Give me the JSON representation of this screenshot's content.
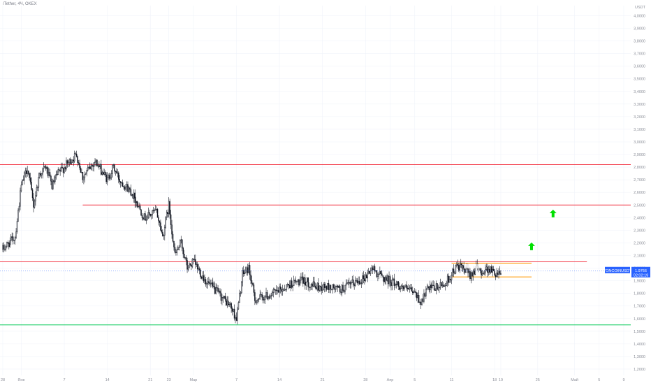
{
  "header": {
    "symbol_line": "/Tether, 4Ч, OKEX"
  },
  "currency": "USDT",
  "last_price": {
    "symbol": "TONCOINUSDT",
    "value": "1.9766",
    "countdown": "02:02:19",
    "color": "#2962ff"
  },
  "colors": {
    "up_candle": "#ffffff",
    "down_candle": "#131722",
    "wick": "#131722",
    "resistance": "#f23645",
    "support": "#00c853",
    "range": "#ff9800",
    "arrow": "#00e000",
    "grid": "#f0f3fa"
  },
  "chart_data": {
    "type": "candlestick",
    "timeframe": "4Ч",
    "y_ticks": [
      1.2,
      1.3,
      1.4,
      1.5,
      1.6,
      1.7,
      1.8,
      1.9,
      2.0,
      2.1,
      2.2,
      2.3,
      2.4,
      2.5,
      2.6,
      2.7,
      2.8,
      2.9,
      3.0,
      3.1,
      3.2,
      3.3,
      3.4,
      3.5,
      3.6,
      3.7,
      3.8,
      3.9,
      4.0
    ],
    "ylim": [
      1.15,
      4.08
    ],
    "x_ticks": [
      {
        "label": "28",
        "day": 0
      },
      {
        "label": "Янв",
        "day": 3
      },
      {
        "label": "7",
        "day": 10
      },
      {
        "label": "14",
        "day": 17
      },
      {
        "label": "21",
        "day": 24
      },
      {
        "label": "23",
        "day": 27
      },
      {
        "label": "Мар",
        "day": 31
      },
      {
        "label": "7",
        "day": 38
      },
      {
        "label": "14",
        "day": 45
      },
      {
        "label": "21",
        "day": 52
      },
      {
        "label": "28",
        "day": 59
      },
      {
        "label": "Апр",
        "day": 63
      },
      {
        "label": "5",
        "day": 67
      },
      {
        "label": "11",
        "day": 73
      },
      {
        "label": "18",
        "day": 80
      },
      {
        "label": "19",
        "day": 81
      },
      {
        "label": "25",
        "day": 87
      },
      {
        "label": "Май",
        "day": 93
      },
      {
        "label": "5",
        "day": 97
      },
      {
        "label": "9",
        "day": 101
      }
    ],
    "price_path": [
      {
        "day": 0,
        "price": 2.15
      },
      {
        "day": 2,
        "price": 2.25
      },
      {
        "day": 3,
        "price": 2.65
      },
      {
        "day": 4,
        "price": 2.8
      },
      {
        "day": 5,
        "price": 2.5
      },
      {
        "day": 6,
        "price": 2.75
      },
      {
        "day": 7,
        "price": 2.8
      },
      {
        "day": 8,
        "price": 2.65
      },
      {
        "day": 9,
        "price": 2.75
      },
      {
        "day": 11,
        "price": 2.85
      },
      {
        "day": 12,
        "price": 2.9
      },
      {
        "day": 13,
        "price": 2.72
      },
      {
        "day": 15,
        "price": 2.85
      },
      {
        "day": 17,
        "price": 2.7
      },
      {
        "day": 18,
        "price": 2.8
      },
      {
        "day": 19,
        "price": 2.7
      },
      {
        "day": 21,
        "price": 2.6
      },
      {
        "day": 23,
        "price": 2.4
      },
      {
        "day": 25,
        "price": 2.45
      },
      {
        "day": 26,
        "price": 2.25
      },
      {
        "day": 27,
        "price": 2.5
      },
      {
        "day": 28,
        "price": 2.1
      },
      {
        "day": 29,
        "price": 2.2
      },
      {
        "day": 30,
        "price": 2.0
      },
      {
        "day": 31,
        "price": 2.05
      },
      {
        "day": 33,
        "price": 1.9
      },
      {
        "day": 35,
        "price": 1.8
      },
      {
        "day": 37,
        "price": 1.7
      },
      {
        "day": 38,
        "price": 1.6
      },
      {
        "day": 39,
        "price": 1.95
      },
      {
        "day": 40,
        "price": 2.0
      },
      {
        "day": 41,
        "price": 1.75
      },
      {
        "day": 43,
        "price": 1.78
      },
      {
        "day": 45,
        "price": 1.82
      },
      {
        "day": 47,
        "price": 1.88
      },
      {
        "day": 49,
        "price": 1.9
      },
      {
        "day": 51,
        "price": 1.85
      },
      {
        "day": 53,
        "price": 1.85
      },
      {
        "day": 55,
        "price": 1.83
      },
      {
        "day": 57,
        "price": 1.88
      },
      {
        "day": 59,
        "price": 1.93
      },
      {
        "day": 60,
        "price": 2.0
      },
      {
        "day": 62,
        "price": 1.92
      },
      {
        "day": 63,
        "price": 1.9
      },
      {
        "day": 65,
        "price": 1.85
      },
      {
        "day": 67,
        "price": 1.8
      },
      {
        "day": 68,
        "price": 1.73
      },
      {
        "day": 69,
        "price": 1.83
      },
      {
        "day": 71,
        "price": 1.85
      },
      {
        "day": 72,
        "price": 1.88
      },
      {
        "day": 73,
        "price": 1.95
      },
      {
        "day": 74,
        "price": 2.02
      },
      {
        "day": 76,
        "price": 1.95
      },
      {
        "day": 77,
        "price": 2.0
      },
      {
        "day": 78,
        "price": 1.97
      },
      {
        "day": 79,
        "price": 2.0
      },
      {
        "day": 80,
        "price": 1.96
      },
      {
        "day": 81,
        "price": 1.9766
      }
    ],
    "horizontal_lines": [
      {
        "name": "resistance-3",
        "price": 2.82,
        "from_day": -1,
        "to_day": 107,
        "color": "#f23645"
      },
      {
        "name": "resistance-2",
        "price": 2.5,
        "from_day": 13,
        "to_day": 107,
        "color": "#f23645"
      },
      {
        "name": "resistance-1",
        "price": 2.05,
        "from_day": -1,
        "to_day": 95,
        "color": "#f23645"
      },
      {
        "name": "support",
        "price": 1.55,
        "from_day": -1,
        "to_day": 107,
        "color": "#00c853"
      },
      {
        "name": "range-top",
        "price": 2.04,
        "from_day": 73,
        "to_day": 86,
        "color": "#ff9800"
      },
      {
        "name": "range-bottom",
        "price": 1.93,
        "from_day": 73,
        "to_day": 86,
        "color": "#ff9800"
      }
    ],
    "arrows": [
      {
        "day": 89.5,
        "price": 2.43
      },
      {
        "day": 86,
        "price": 2.17
      }
    ]
  }
}
